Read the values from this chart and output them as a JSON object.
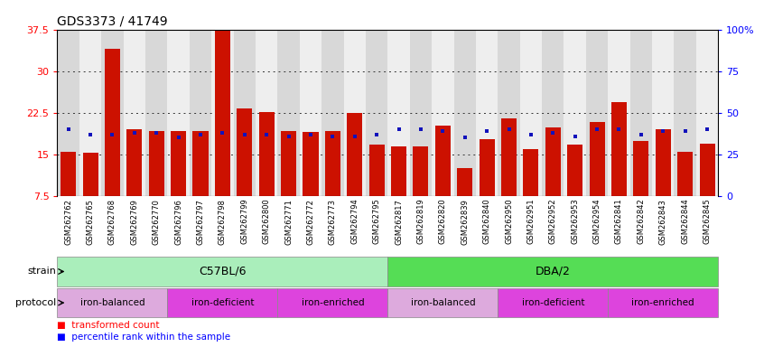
{
  "title": "GDS3373 / 41749",
  "samples": [
    "GSM262762",
    "GSM262765",
    "GSM262768",
    "GSM262769",
    "GSM262770",
    "GSM262796",
    "GSM262797",
    "GSM262798",
    "GSM262799",
    "GSM262800",
    "GSM262771",
    "GSM262772",
    "GSM262773",
    "GSM262794",
    "GSM262795",
    "GSM262817",
    "GSM262819",
    "GSM262820",
    "GSM262839",
    "GSM262840",
    "GSM262950",
    "GSM262951",
    "GSM262952",
    "GSM262953",
    "GSM262954",
    "GSM262841",
    "GSM262842",
    "GSM262843",
    "GSM262844",
    "GSM262845"
  ],
  "red_values": [
    15.5,
    15.3,
    34.0,
    19.5,
    19.2,
    19.2,
    19.2,
    37.2,
    23.2,
    22.6,
    19.2,
    19.0,
    19.2,
    22.5,
    16.8,
    16.5,
    16.5,
    20.2,
    12.5,
    17.8,
    21.5,
    16.0,
    19.8,
    16.8,
    20.8,
    24.5,
    17.5,
    19.5,
    15.5,
    17.0
  ],
  "blue_pct": [
    40,
    37,
    37,
    38,
    38,
    35,
    37,
    38,
    37,
    37,
    36,
    37,
    36,
    36,
    37,
    40,
    40,
    39,
    35,
    39,
    40,
    37,
    38,
    36,
    40,
    40,
    37,
    39,
    39,
    40
  ],
  "y_min": 7.5,
  "y_max": 37.5,
  "y_ticks": [
    7.5,
    15.0,
    22.5,
    30.0,
    37.5
  ],
  "y_tick_labels": [
    "7.5",
    "15",
    "22.5",
    "30",
    "37.5"
  ],
  "y_right_ticks": [
    0,
    25,
    50,
    75,
    100
  ],
  "y_right_labels": [
    "0",
    "25",
    "50",
    "75",
    "100%"
  ],
  "bar_color": "#cc1100",
  "blue_color": "#1111bb",
  "bg_even": "#d8d8d8",
  "bg_odd": "#eeeeee",
  "strain_c57_color": "#aaeebb",
  "strain_dba_color": "#55dd55",
  "protocol_balanced_color": "#ddaadd",
  "protocol_deficient_color": "#cc44cc",
  "protocol_enriched_color": "#cc44cc",
  "proto_sections": [
    [
      -0.5,
      4.5,
      "#ddaadd",
      "iron-balanced"
    ],
    [
      4.5,
      9.5,
      "#dd44dd",
      "iron-deficient"
    ],
    [
      9.5,
      14.5,
      "#dd44dd",
      "iron-enriched"
    ],
    [
      14.5,
      19.5,
      "#ddaadd",
      "iron-balanced"
    ],
    [
      19.5,
      24.5,
      "#dd44dd",
      "iron-deficient"
    ],
    [
      24.5,
      29.5,
      "#dd44dd",
      "iron-enriched"
    ]
  ],
  "legend_red": "transformed count",
  "legend_blue": "percentile rank within the sample",
  "strain_label": "strain",
  "protocol_label": "protocol"
}
